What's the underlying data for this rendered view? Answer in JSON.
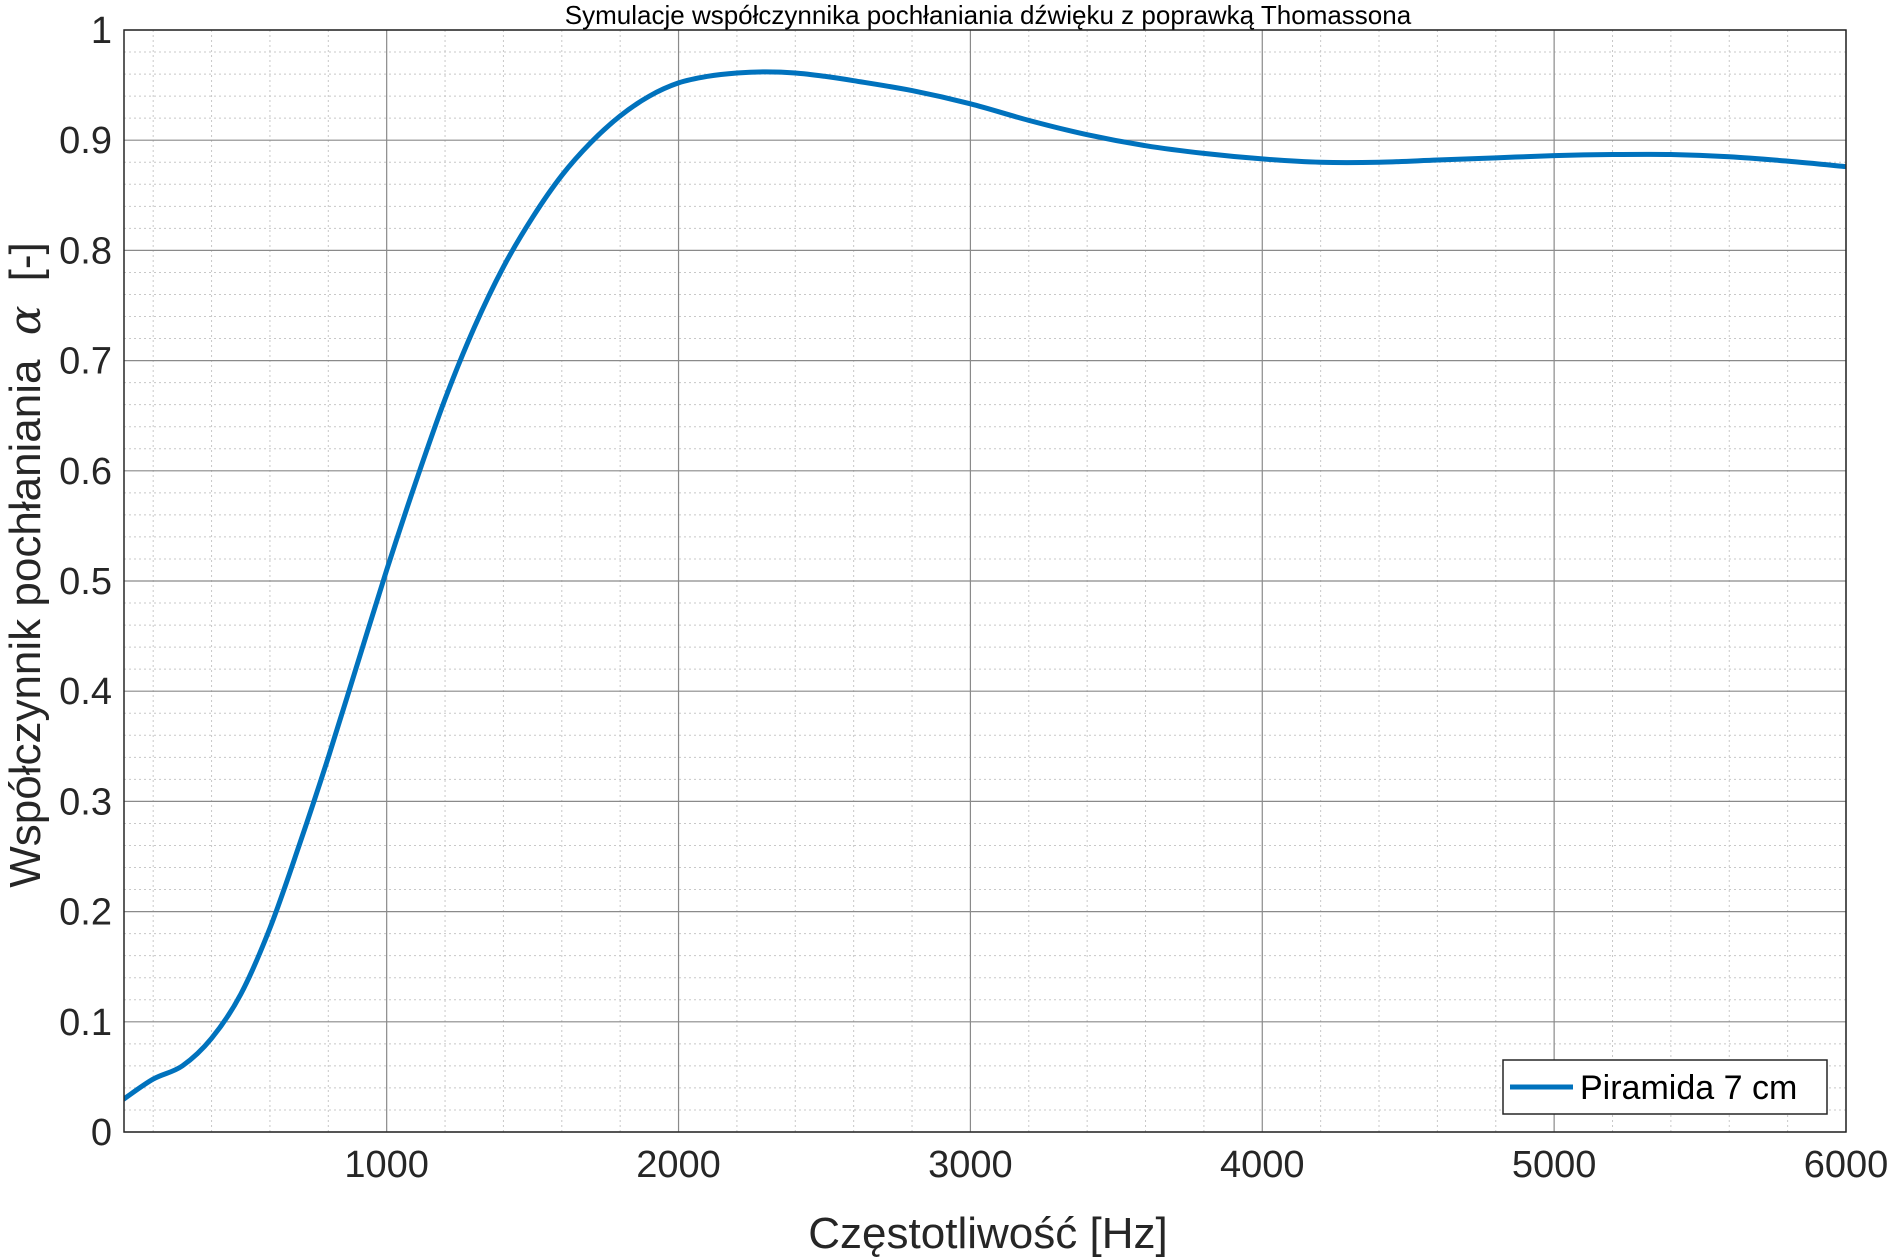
{
  "chart_data": {
    "type": "line",
    "title": "Symulacje współczynnika pochłaniania dźwięku z poprawką Thomassona",
    "xlabel": "Częstotliwość [Hz]",
    "ylabel_text": "Współczynnik pochłaniania",
    "ylabel_symbol": "α",
    "ylabel_unit": "[-]",
    "xlim": [
      100,
      6000
    ],
    "ylim": [
      0,
      1
    ],
    "x_ticks": [
      1000,
      2000,
      3000,
      4000,
      5000,
      6000
    ],
    "x_tick_labels": [
      "1000",
      "2000",
      "3000",
      "4000",
      "5000",
      "6000"
    ],
    "y_ticks": [
      0,
      0.1,
      0.2,
      0.3,
      0.4,
      0.5,
      0.6,
      0.7,
      0.8,
      0.9,
      1
    ],
    "y_tick_labels": [
      "0",
      "0.1",
      "0.2",
      "0.3",
      "0.4",
      "0.5",
      "0.6",
      "0.7",
      "0.8",
      "0.9",
      "1"
    ],
    "x_minor_step": 200,
    "y_minor_step": 0.02,
    "grid": true,
    "minor_grid": true,
    "legend_position": "bottom-right",
    "series": [
      {
        "name": "Piramida 7 cm",
        "color": "#0072BD",
        "x": [
          100,
          200,
          300,
          400,
          500,
          600,
          700,
          800,
          900,
          1000,
          1100,
          1200,
          1300,
          1400,
          1500,
          1600,
          1700,
          1800,
          1900,
          2000,
          2100,
          2200,
          2300,
          2400,
          2500,
          2600,
          2800,
          3000,
          3200,
          3400,
          3600,
          3800,
          4000,
          4200,
          4400,
          4600,
          4800,
          5000,
          5200,
          5400,
          5600,
          5800,
          6000
        ],
        "y": [
          0.03,
          0.048,
          0.06,
          0.085,
          0.125,
          0.185,
          0.26,
          0.34,
          0.425,
          0.51,
          0.59,
          0.665,
          0.73,
          0.785,
          0.83,
          0.868,
          0.898,
          0.922,
          0.94,
          0.952,
          0.958,
          0.961,
          0.962,
          0.961,
          0.958,
          0.954,
          0.945,
          0.933,
          0.918,
          0.905,
          0.895,
          0.888,
          0.883,
          0.88,
          0.88,
          0.882,
          0.884,
          0.886,
          0.887,
          0.887,
          0.885,
          0.881,
          0.876
        ]
      }
    ]
  }
}
